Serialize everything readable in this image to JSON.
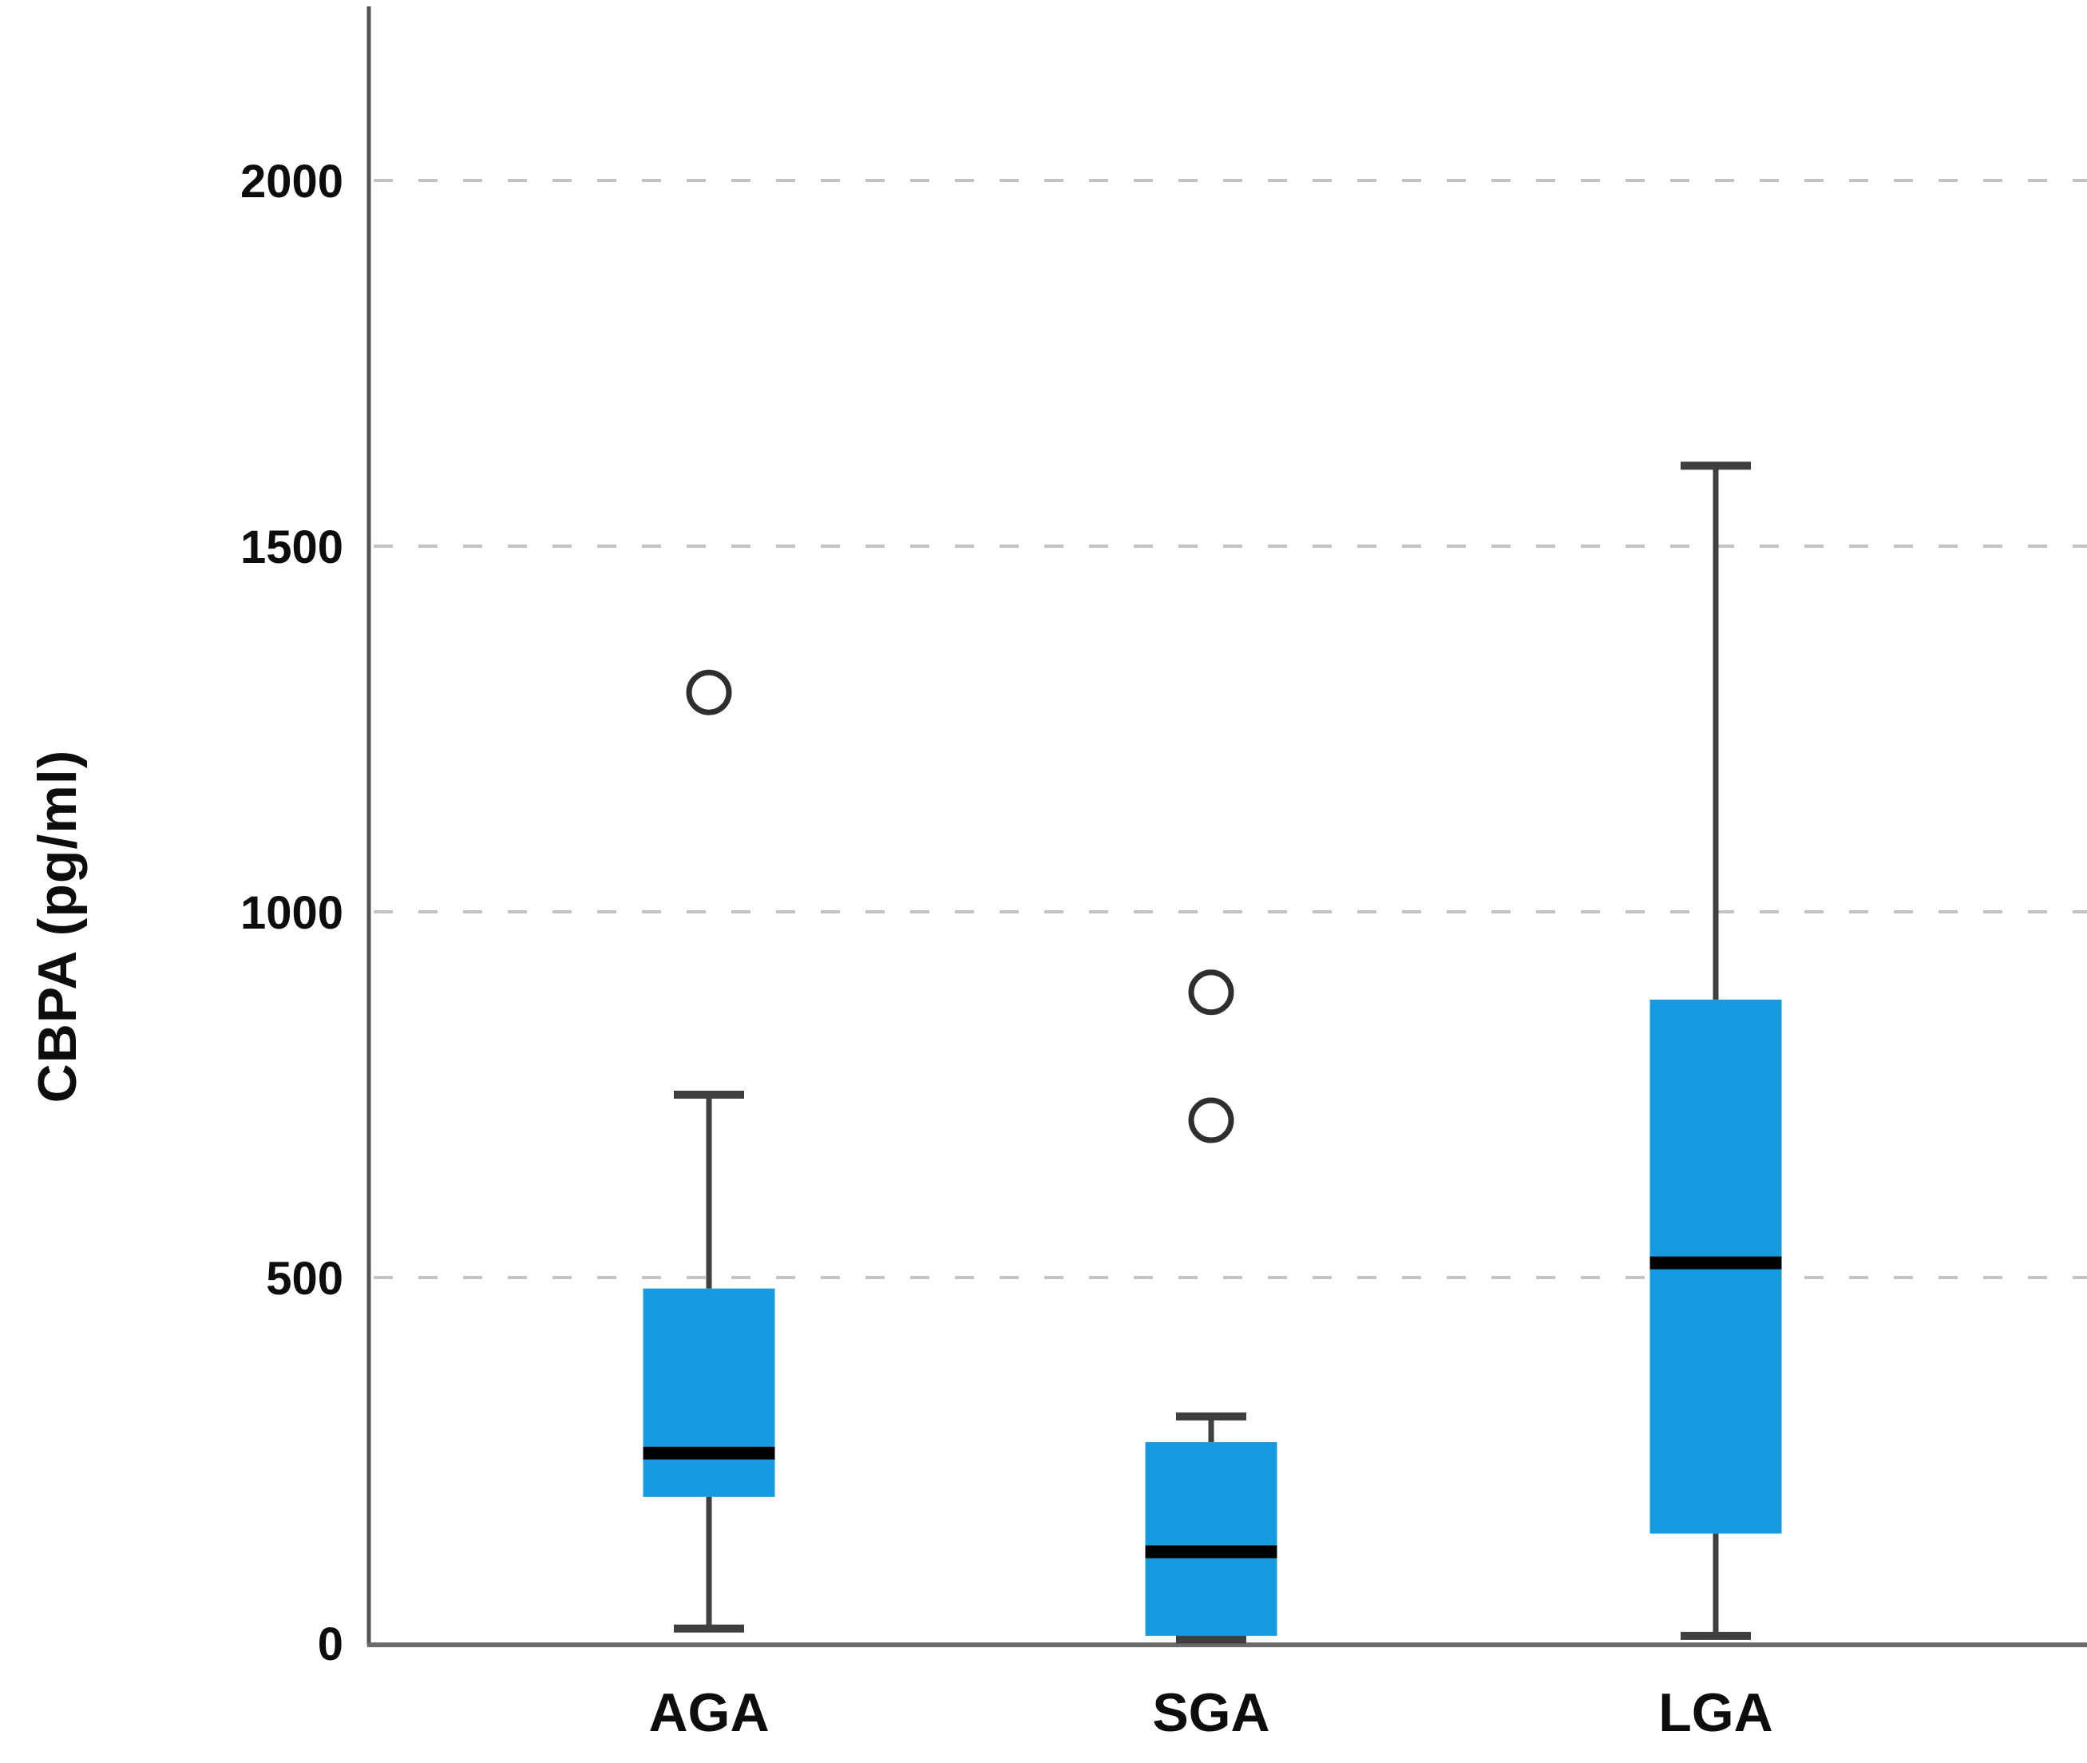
{
  "figure": {
    "ylabel": "CBPA (pg/ml)"
  },
  "chart_data": {
    "type": "box",
    "title": "",
    "xlabel": "",
    "ylabel": "CBPA (pg/ml)",
    "categories": [
      "AGA",
      "SGA",
      "LGA"
    ],
    "yticks": [
      0,
      500,
      1000,
      1500,
      2000
    ],
    "ylim": [
      0,
      2240
    ],
    "grid": "horizontal-dashed",
    "legend": "none",
    "series": [
      {
        "name": "AGA",
        "whisker_low": 20,
        "q1": 200,
        "median": 260,
        "q3": 485,
        "whisker_high": 750,
        "outliers": [
          1300
        ]
      },
      {
        "name": "SGA",
        "whisker_low": 5,
        "q1": 10,
        "median": 125,
        "q3": 275,
        "whisker_high": 310,
        "outliers": [
          890,
          715
        ]
      },
      {
        "name": "LGA",
        "whisker_low": 10,
        "q1": 150,
        "median": 520,
        "q3": 880,
        "whisker_high": 1610,
        "outliers": []
      }
    ],
    "colors": {
      "box_fill": "#169BE1",
      "median": "#000000",
      "whisker": "#3f3f3f",
      "outlier_stroke": "#2f2f2f",
      "gridline": "#c3c3c3",
      "x_axis": "#6b6b6b",
      "y_axis": "#555555",
      "tick_label": "#0d0d0d",
      "background": "#ffffff"
    }
  }
}
